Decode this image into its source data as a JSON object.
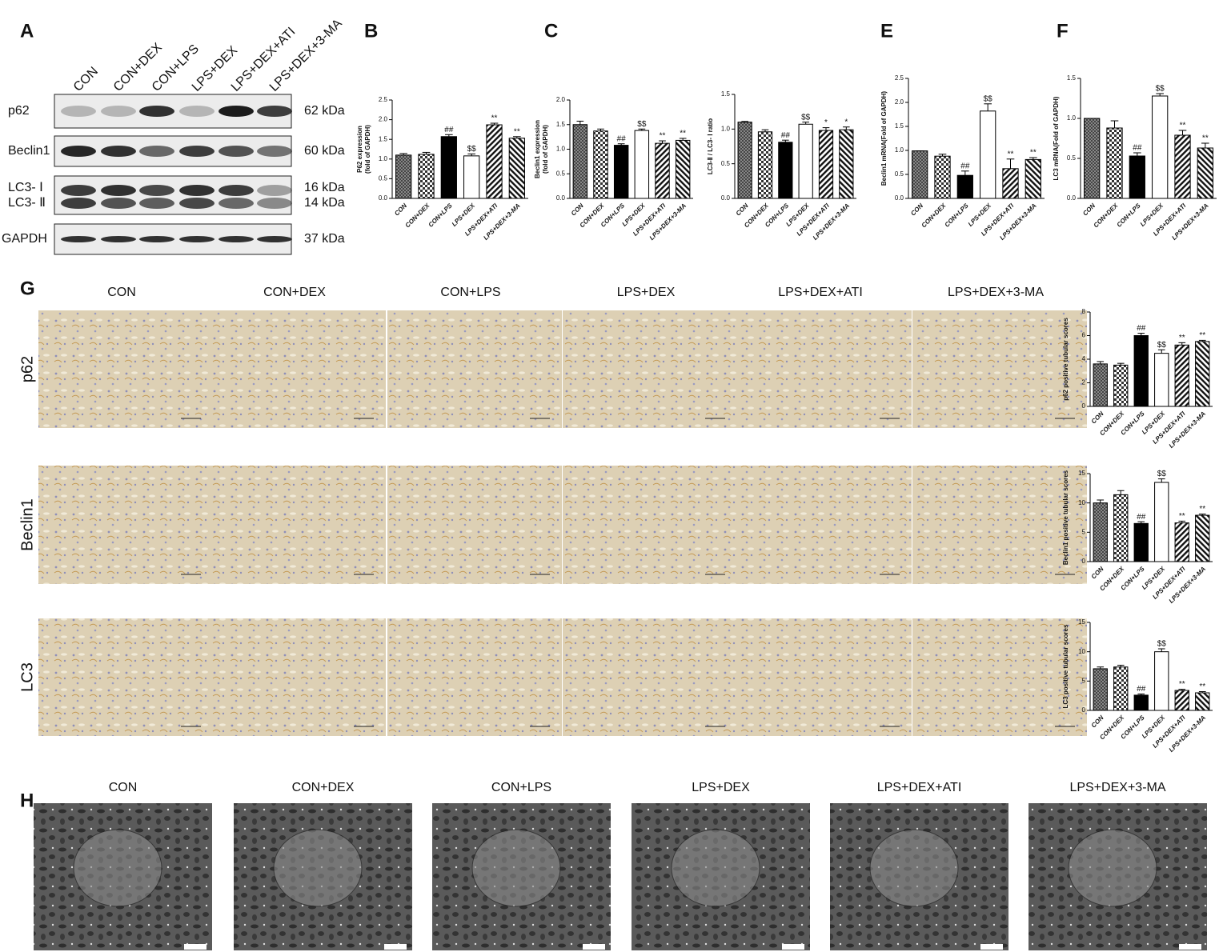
{
  "panel_letters": [
    "A",
    "B",
    "C",
    "E",
    "F",
    "G",
    "H"
  ],
  "blot": {
    "lanes": [
      "CON",
      "CON+DEX",
      "CON+LPS",
      "LPS+DEX",
      "LPS+DEX+ATI",
      "LPS+DEX+3-MA"
    ],
    "rows": [
      {
        "label": "p62",
        "kda": "62 kDa"
      },
      {
        "label": "Beclin1",
        "kda": "60 kDa"
      },
      {
        "label": "LC3- Ⅰ",
        "kda": "16 kDa"
      },
      {
        "label": "LC3- Ⅱ",
        "kda": "14 kDa"
      },
      {
        "label": "GAPDH",
        "kda": "37 kDa"
      }
    ]
  },
  "ihc": {
    "groups": [
      "CON",
      "CON+DEX",
      "CON+LPS",
      "LPS+DEX",
      "LPS+DEX+ATI",
      "LPS+DEX+3-MA"
    ],
    "rows": [
      "p62",
      "Beclin1",
      "LC3"
    ]
  },
  "tem": {
    "groups": [
      "CON",
      "CON+DEX",
      "CON+LPS",
      "LPS+DEX",
      "LPS+DEX+ATI",
      "LPS+DEX+3-MA"
    ]
  },
  "chart_data": [
    {
      "type": "bar",
      "ylabel": [
        "P62 expression",
        "(fold of GAPDH)"
      ],
      "categories": [
        "CON",
        "CON+DEX",
        "CON+LPS",
        "LPS+DEX",
        "LPS+DEX+ATI",
        "LPS+DEX+3-MA"
      ],
      "values": [
        1.1,
        1.12,
        1.57,
        1.08,
        1.87,
        1.53
      ],
      "errors": [
        0.04,
        0.05,
        0.05,
        0.05,
        0.04,
        0.04
      ],
      "significance": [
        null,
        null,
        "##",
        "$$",
        "**",
        "**"
      ],
      "bar_patterns": [
        "grid",
        "checker",
        "solid",
        "white",
        "hatch",
        "hatch-reverse"
      ],
      "ylim": [
        0,
        2.5
      ],
      "yticks": [
        {
          "value": 0,
          "label": "0.0"
        },
        0.5,
        {
          "value": 1,
          "label": "1.0"
        },
        1.5,
        {
          "value": 2,
          "label": "2.0"
        },
        2.5
      ]
    },
    {
      "type": "bar",
      "ylabel": [
        "Beclin1 expression",
        "(fold of GAPDH)"
      ],
      "categories": [
        "CON",
        "CON+DEX",
        "CON+LPS",
        "LPS+DEX",
        "LPS+DEX+ATI",
        "LPS+DEX+3-MA"
      ],
      "values": [
        1.5,
        1.37,
        1.08,
        1.38,
        1.12,
        1.18
      ],
      "errors": [
        0.07,
        0.04,
        0.03,
        0.03,
        0.05,
        0.04
      ],
      "significance": [
        null,
        null,
        "##",
        "$$",
        "**",
        "**"
      ],
      "bar_patterns": [
        "grid",
        "checker",
        "solid",
        "white",
        "hatch",
        "hatch-reverse"
      ],
      "ylim": [
        0,
        2
      ],
      "yticks": [
        {
          "value": 0,
          "label": "0.0"
        },
        0.5,
        {
          "value": 1,
          "label": "1.0"
        },
        1.5,
        {
          "value": 2,
          "label": "2.0"
        }
      ]
    },
    {
      "type": "bar",
      "ylabel": [
        "LC3-Ⅱ / LC3- Ⅰ ratio"
      ],
      "categories": [
        "CON",
        "CON+DEX",
        "CON+LPS",
        "LPS+DEX",
        "LPS+DEX+ATI",
        "LPS+DEX+3-MA"
      ],
      "values": [
        1.1,
        0.96,
        0.81,
        1.07,
        0.98,
        0.99
      ],
      "errors": [
        0.01,
        0.03,
        0.03,
        0.03,
        0.04,
        0.04
      ],
      "significance": [
        null,
        null,
        "##",
        "$$",
        "*",
        "*"
      ],
      "bar_patterns": [
        "grid",
        "checker",
        "solid",
        "white",
        "hatch",
        "hatch-reverse"
      ],
      "ylim": [
        0,
        1.5
      ],
      "yticks": [
        {
          "value": 0,
          "label": "0.0"
        },
        0.5,
        {
          "value": 1,
          "label": "1.0"
        },
        1.5
      ]
    },
    {
      "type": "bar",
      "ylabel": [
        "Beclin1 mRNA(Fold of GAPDH)"
      ],
      "categories": [
        "CON",
        "CON+DEX",
        "CON+LPS",
        "LPS+DEX",
        "LPS+DEX+ATI",
        "LPS+DEX+3-MA"
      ],
      "values": [
        0.99,
        0.88,
        0.48,
        1.82,
        0.62,
        0.81
      ],
      "errors": [
        0,
        0.04,
        0.09,
        0.15,
        0.2,
        0.04
      ],
      "significance": [
        null,
        null,
        "##",
        "$$",
        "**",
        "**"
      ],
      "bar_patterns": [
        "grid",
        "checker",
        "solid",
        "white",
        "hatch",
        "hatch-reverse"
      ],
      "ylim": [
        0,
        2.5
      ],
      "yticks": [
        {
          "value": 0,
          "label": "0.0"
        },
        0.5,
        {
          "value": 1,
          "label": "1.0"
        },
        1.5,
        {
          "value": 2,
          "label": "2.0"
        },
        2.5
      ]
    },
    {
      "type": "bar",
      "ylabel": [
        "LC3 mRNA(Fold of GAPDH)"
      ],
      "categories": [
        "CON",
        "CON+DEX",
        "CON+LPS",
        "LPS+DEX",
        "LPS+DEX+ATI",
        "LPS+DEX+3-MA"
      ],
      "values": [
        1.0,
        0.88,
        0.53,
        1.28,
        0.79,
        0.63
      ],
      "errors": [
        0,
        0.09,
        0.04,
        0.03,
        0.06,
        0.06
      ],
      "significance": [
        null,
        null,
        "##",
        "$$",
        "**",
        "**"
      ],
      "bar_patterns": [
        "grid",
        "checker",
        "solid",
        "white",
        "hatch",
        "hatch-reverse"
      ],
      "ylim": [
        0,
        1.5
      ],
      "yticks": [
        {
          "value": 0,
          "label": "0.0"
        },
        0.5,
        {
          "value": 1,
          "label": "1.0"
        },
        1.5
      ]
    },
    {
      "type": "bar",
      "ylabel": [
        "p62 positive tubular scores"
      ],
      "categories": [
        "CON",
        "CON+DEX",
        "CON+LPS",
        "LPS+DEX",
        "LPS+DEX+ATI",
        "LPS+DEX+3-MA"
      ],
      "values": [
        3.6,
        3.5,
        6.0,
        4.5,
        5.2,
        5.5
      ],
      "errors": [
        0.2,
        0.15,
        0.2,
        0.3,
        0.2,
        0.1
      ],
      "significance": [
        null,
        null,
        "##",
        "$$",
        "**",
        "**"
      ],
      "bar_patterns": [
        "grid",
        "checker",
        "solid",
        "white",
        "hatch",
        "hatch-reverse"
      ],
      "ylim": [
        0,
        8
      ],
      "yticks": [
        0,
        2,
        4,
        6,
        8
      ]
    },
    {
      "type": "bar",
      "ylabel": [
        "Beclin1 positive tubular scores"
      ],
      "categories": [
        "CON",
        "CON+DEX",
        "CON+LPS",
        "LPS+DEX",
        "LPS+DEX+ATI",
        "LPS+DEX+3-MA"
      ],
      "values": [
        10.0,
        11.4,
        6.5,
        13.5,
        6.6,
        7.9
      ],
      "errors": [
        0.5,
        0.7,
        0.3,
        0.6,
        0.3,
        0.2
      ],
      "significance": [
        null,
        null,
        "##",
        "$$",
        "**",
        "**"
      ],
      "bar_patterns": [
        "grid",
        "checker",
        "solid",
        "white",
        "hatch",
        "hatch-reverse"
      ],
      "ylim": [
        0,
        15
      ],
      "yticks": [
        0,
        5,
        10,
        15
      ]
    },
    {
      "type": "bar",
      "ylabel": [
        "LC3 positive tubular scores"
      ],
      "categories": [
        "CON",
        "CON+DEX",
        "CON+LPS",
        "LPS+DEX",
        "LPS+DEX+ATI",
        "LPS+DEX+3-MA"
      ],
      "values": [
        7.1,
        7.4,
        2.6,
        10.0,
        3.4,
        3.0
      ],
      "errors": [
        0.3,
        0.3,
        0.2,
        0.5,
        0.2,
        0.2
      ],
      "significance": [
        null,
        null,
        "##",
        "$$",
        "**",
        "**"
      ],
      "bar_patterns": [
        "grid",
        "checker",
        "solid",
        "white",
        "hatch",
        "hatch-reverse"
      ],
      "ylim": [
        0,
        15
      ],
      "yticks": [
        0,
        5,
        10,
        15
      ]
    }
  ]
}
